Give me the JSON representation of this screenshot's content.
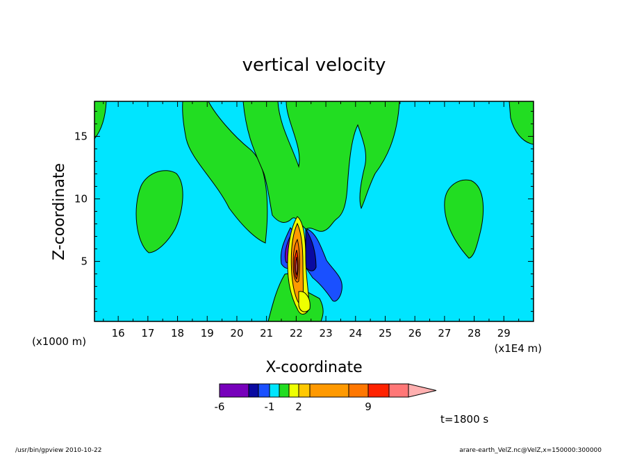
{
  "chart_data": {
    "type": "contour",
    "title": "vertical velocity",
    "xlabel": "X-coordinate",
    "ylabel": "Z-coordinate",
    "x_unit": "(x1E4 m)",
    "y_unit": "(x1000 m)",
    "xlim": [
      15.2,
      30.0
    ],
    "ylim": [
      0.2,
      17.8
    ],
    "x_ticks": [
      16,
      17,
      18,
      19,
      20,
      21,
      22,
      23,
      24,
      25,
      26,
      27,
      28,
      29
    ],
    "y_ticks": [
      5,
      10,
      15
    ],
    "colorbar": {
      "labels": [
        {
          "text": "-6",
          "level": -6
        },
        {
          "text": "-1",
          "level": -1
        },
        {
          "text": "2",
          "level": 2
        },
        {
          "text": "9",
          "level": 9
        }
      ],
      "bins": [
        {
          "level": -6,
          "color": "#7700bb"
        },
        {
          "level": -3,
          "color": "#0a0aa0"
        },
        {
          "level": -2,
          "color": "#1a50ff"
        },
        {
          "level": -1,
          "color": "#00e5ff"
        },
        {
          "level": 0,
          "color": "#22dd22"
        },
        {
          "level": 1,
          "color": "#eeff00"
        },
        {
          "level": 2,
          "color": "#ffc800"
        },
        {
          "level": 3,
          "color": "#ff9900"
        },
        {
          "level": 7,
          "color": "#ff7700"
        },
        {
          "level": 9,
          "color": "#ff2200"
        },
        {
          "level": 11,
          "color": "#ff7777"
        },
        {
          "level": 13,
          "color": "#ffb0b0"
        }
      ]
    },
    "time_label": "t=1800 s",
    "footer_left": "/usr/bin/gpview  2010-10-22",
    "footer_right": "arare-earth_VelZ.nc@VelZ,x=150000:300000",
    "background_color": "#00e5ff"
  }
}
